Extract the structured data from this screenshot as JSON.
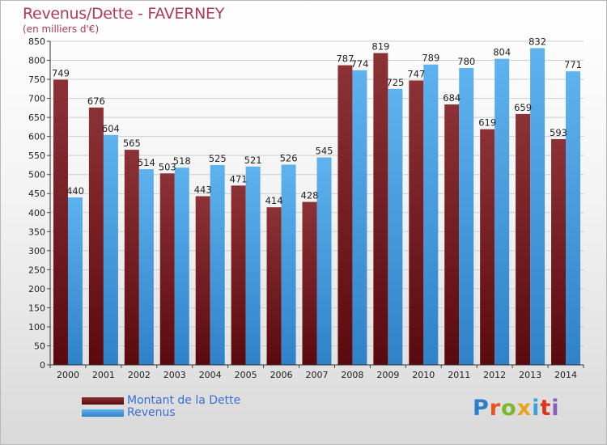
{
  "chart_data": {
    "type": "bar",
    "title": "Revenus/Dette - FAVERNEY",
    "subtitle": "(en milliers d'€)",
    "categories": [
      "2000",
      "2001",
      "2002",
      "2003",
      "2004",
      "2005",
      "2006",
      "2007",
      "2008",
      "2009",
      "2010",
      "2011",
      "2012",
      "2013",
      "2014"
    ],
    "series": [
      {
        "name": "Montant de la Dette",
        "color": "#7a1e22",
        "values": [
          749,
          676,
          565,
          503,
          443,
          471,
          414,
          428,
          787,
          819,
          747,
          684,
          619,
          659,
          593
        ]
      },
      {
        "name": "Revenus",
        "color": "#4aa3e3",
        "values": [
          440,
          604,
          514,
          518,
          525,
          521,
          526,
          545,
          774,
          725,
          789,
          780,
          804,
          832,
          771
        ]
      }
    ],
    "ylim": [
      0,
      850
    ],
    "ytick_step": 50,
    "grid": true,
    "legend_position": "bottom-left"
  },
  "logo": {
    "text": "Proxiti"
  }
}
